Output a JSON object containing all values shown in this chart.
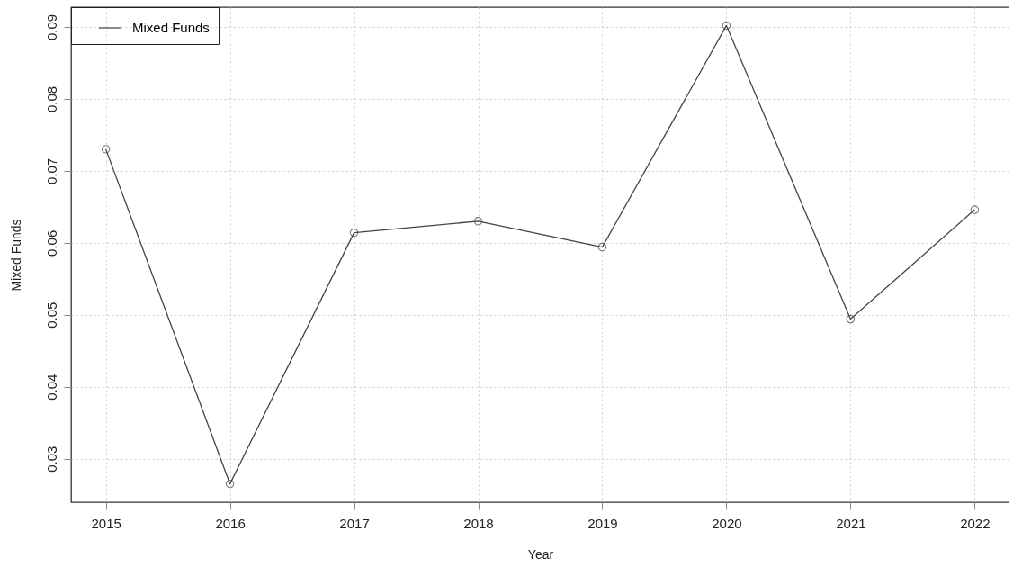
{
  "chart_data": {
    "type": "line",
    "xlabel": "Year",
    "ylabel": "Mixed Funds",
    "x": [
      2015,
      2016,
      2017,
      2018,
      2019,
      2020,
      2021,
      2022
    ],
    "series": [
      {
        "name": "Mixed Funds",
        "color": "#444444",
        "values": [
          0.073,
          0.0265,
          0.0614,
          0.063,
          0.0594,
          0.0902,
          0.0494,
          0.0646
        ]
      }
    ],
    "xlim": [
      2014.72,
      2022.28
    ],
    "xticks": [
      2015,
      2016,
      2017,
      2018,
      2019,
      2020,
      2021,
      2022
    ],
    "ylim": [
      0.02395,
      0.09275
    ],
    "yticks": [
      0.03,
      0.04,
      0.05,
      0.06,
      0.07,
      0.08,
      0.09
    ],
    "grid": true,
    "legend": "top left",
    "marker": "circle",
    "line_style": "solid"
  }
}
